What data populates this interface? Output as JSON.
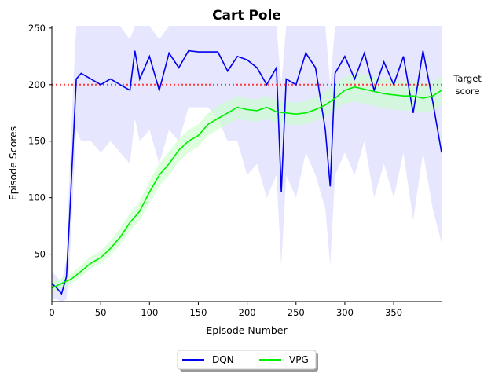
{
  "chart_data": {
    "type": "line",
    "title": "Cart Pole",
    "xlabel": "Episode Number",
    "ylabel": "Episode Scores",
    "xlim": [
      0,
      399
    ],
    "ylim": [
      8,
      252
    ],
    "xticks": [
      0,
      50,
      100,
      150,
      200,
      250,
      300,
      350
    ],
    "yticks": [
      50,
      100,
      150,
      200,
      250
    ],
    "grid": false,
    "legend_position": "bottom-center-outside",
    "target_line": {
      "y": 200,
      "label_line1": "Target",
      "label_line2": "score",
      "color": "#ff3b3b"
    },
    "series": [
      {
        "name": "DQN",
        "color": "#0000ee",
        "band_color": "#c8c8ff",
        "x": [
          0,
          5,
          10,
          15,
          18,
          22,
          25,
          30,
          40,
          50,
          60,
          70,
          80,
          85,
          90,
          100,
          110,
          120,
          130,
          140,
          150,
          160,
          170,
          180,
          190,
          200,
          210,
          220,
          230,
          235,
          240,
          250,
          260,
          270,
          280,
          285,
          290,
          300,
          310,
          320,
          330,
          340,
          350,
          360,
          370,
          380,
          390,
          399
        ],
        "values": [
          24,
          20,
          15,
          30,
          80,
          150,
          205,
          210,
          205,
          200,
          205,
          200,
          195,
          230,
          205,
          225,
          195,
          228,
          215,
          230,
          229,
          229,
          229,
          212,
          225,
          222,
          215,
          200,
          215,
          105,
          205,
          200,
          228,
          215,
          160,
          110,
          210,
          225,
          205,
          228,
          195,
          220,
          200,
          225,
          175,
          230,
          185,
          140
        ],
        "band_low": [
          10,
          10,
          8,
          10,
          40,
          110,
          160,
          150,
          150,
          140,
          150,
          140,
          130,
          170,
          150,
          160,
          130,
          160,
          150,
          180,
          180,
          180,
          170,
          150,
          150,
          120,
          130,
          100,
          120,
          40,
          120,
          100,
          140,
          120,
          90,
          40,
          120,
          140,
          120,
          150,
          100,
          130,
          100,
          140,
          80,
          140,
          90,
          60
        ],
        "band_high": [
          35,
          30,
          25,
          45,
          120,
          200,
          252,
          252,
          252,
          252,
          252,
          252,
          240,
          252,
          252,
          252,
          240,
          252,
          252,
          252,
          252,
          252,
          252,
          252,
          252,
          252,
          252,
          252,
          252,
          200,
          252,
          252,
          252,
          252,
          252,
          200,
          252,
          252,
          252,
          252,
          252,
          252,
          252,
          252,
          252,
          252,
          252,
          252
        ]
      },
      {
        "name": "VPG",
        "color": "#00ee00",
        "band_color": "#c8ffc8",
        "x": [
          0,
          10,
          20,
          30,
          40,
          50,
          60,
          70,
          80,
          90,
          100,
          110,
          120,
          130,
          140,
          150,
          160,
          170,
          180,
          190,
          200,
          210,
          220,
          230,
          240,
          250,
          260,
          270,
          280,
          290,
          300,
          310,
          320,
          330,
          340,
          350,
          360,
          370,
          380,
          390,
          399
        ],
        "values": [
          20,
          24,
          28,
          35,
          42,
          47,
          55,
          65,
          78,
          88,
          105,
          120,
          130,
          142,
          150,
          155,
          165,
          170,
          175,
          180,
          178,
          177,
          180,
          176,
          175,
          174,
          175,
          178,
          182,
          188,
          195,
          198,
          196,
          194,
          192,
          191,
          190,
          190,
          188,
          190,
          195
        ],
        "band_low": [
          16,
          20,
          24,
          30,
          37,
          42,
          49,
          58,
          70,
          80,
          95,
          110,
          120,
          132,
          140,
          145,
          155,
          160,
          165,
          170,
          168,
          167,
          170,
          166,
          165,
          164,
          165,
          168,
          172,
          178,
          183,
          185,
          183,
          181,
          179,
          178,
          177,
          177,
          175,
          177,
          182
        ],
        "band_high": [
          25,
          29,
          33,
          40,
          48,
          53,
          62,
          73,
          86,
          97,
          115,
          130,
          141,
          152,
          160,
          165,
          175,
          181,
          186,
          190,
          188,
          187,
          190,
          186,
          185,
          184,
          186,
          189,
          194,
          200,
          207,
          210,
          209,
          207,
          205,
          204,
          203,
          203,
          201,
          203,
          208
        ]
      }
    ]
  }
}
